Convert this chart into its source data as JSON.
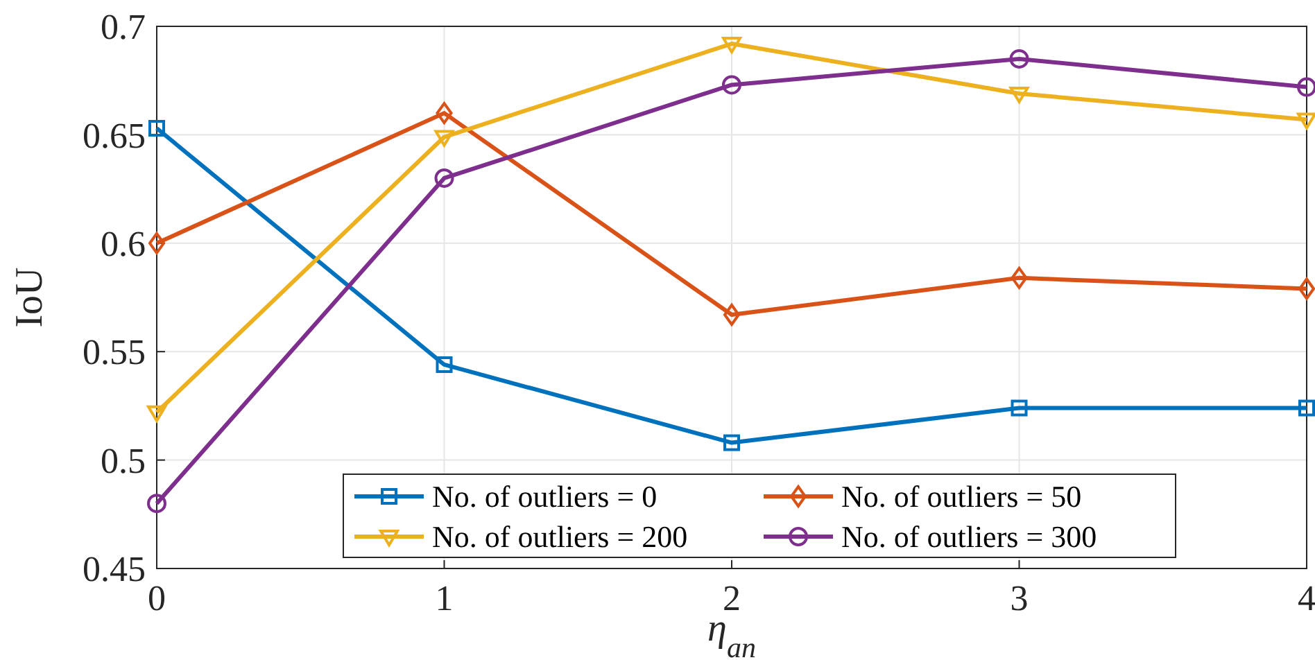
{
  "chart_data": {
    "type": "line",
    "xlabel": "η$_{an}$",
    "ylabel": "IoU",
    "x": [
      0,
      1,
      2,
      3,
      4
    ],
    "xlim": [
      0,
      4
    ],
    "xticks": [
      0,
      1,
      2,
      3,
      4
    ],
    "ylim": [
      0.45,
      0.7
    ],
    "yticks": [
      0.45,
      0.5,
      0.55,
      0.6,
      0.65,
      0.7
    ],
    "grid": true,
    "legend": "bottom",
    "series": [
      {
        "name": "No. of outliers = 0",
        "color": "#0072bd",
        "marker": "square",
        "values": [
          0.653,
          0.544,
          0.508,
          0.524,
          0.524
        ]
      },
      {
        "name": "No. of outliers = 50",
        "color": "#d95319",
        "marker": "diamond",
        "values": [
          0.6,
          0.66,
          0.567,
          0.584,
          0.579
        ]
      },
      {
        "name": "No. of outliers = 200",
        "color": "#edb120",
        "marker": "triangle",
        "values": [
          0.522,
          0.649,
          0.692,
          0.669,
          0.657
        ]
      },
      {
        "name": "No. of outliers = 300",
        "color": "#7e2f8e",
        "marker": "circle",
        "values": [
          0.48,
          0.63,
          0.673,
          0.685,
          0.672
        ]
      }
    ]
  }
}
